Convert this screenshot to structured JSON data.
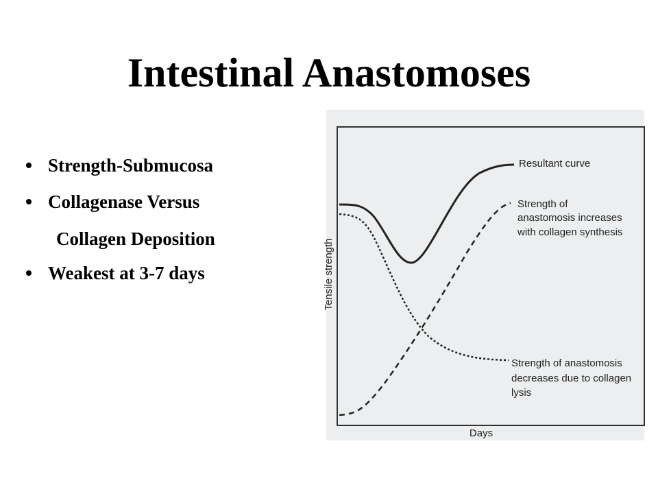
{
  "title": "Intestinal Anastomoses",
  "bullets": [
    "Strength-Submucosa",
    "Collagenase Versus",
    "Weakest at 3-7 days"
  ],
  "bullet_continuation": "Collagen Deposition",
  "figure": {
    "y_axis_label": "Tensile strength",
    "x_axis_label": "Days",
    "curve_labels": {
      "resultant": [
        "Resultant curve"
      ],
      "increase": [
        "Strength of",
        "anastomosis increases",
        "with collagen synthesis"
      ],
      "decrease": [
        "Strength of anastomosis",
        "decreases due to collagen",
        "lysis"
      ]
    }
  }
}
